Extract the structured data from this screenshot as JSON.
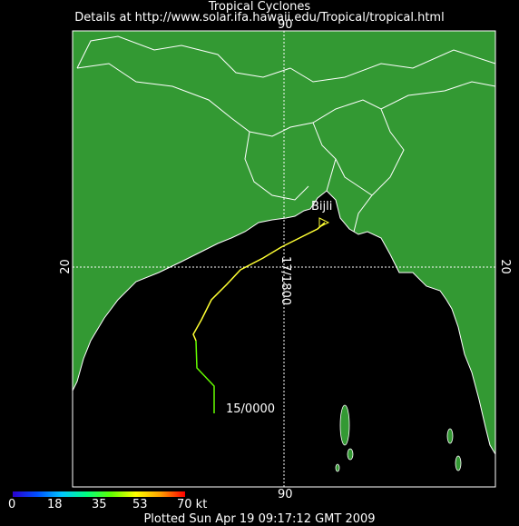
{
  "header": {
    "title": "Tropical Cyclones",
    "details": "Details at http://www.solar.ifa.hawaii.edu/Tropical/tropical.html"
  },
  "map": {
    "lon_label": "90",
    "lat_label_left": "20",
    "lat_label_right": "20",
    "storm_name": "Bijli",
    "start_label": "15/0000",
    "end_label": "17/1800",
    "colors": {
      "land": "#339933",
      "ocean": "#000000",
      "coast": "#ffffff",
      "grid": "#ffffff"
    }
  },
  "legend": {
    "ticks": [
      "0",
      "18",
      "35",
      "53",
      "70 kt"
    ]
  },
  "footer": "Plotted Sun Apr 19 09:17:12 GMT 2009"
}
